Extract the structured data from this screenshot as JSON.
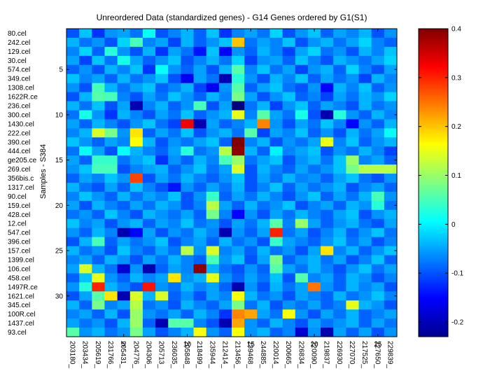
{
  "chart_data": {
    "type": "heatmap",
    "title": "Unreordered Data (standardized genes) - G14 Genes ordered by G1(S1)",
    "ylabel": "Samples - S384",
    "xlabel": "",
    "row_labels": [
      "80.cel",
      "242.cel",
      "129.cel",
      "30.cel",
      "574.cel",
      "349.cel",
      "1308.cel",
      "1622R.ce",
      "236.cel",
      "300.cel",
      "1430.cel",
      "222.cel",
      "390.cel",
      "444.cel",
      "ge205.ce",
      "269.cel",
      "356bis.c",
      "1317.cel",
      "90.cel",
      "159.cel",
      "428.cel",
      "12.cel",
      "547.cel",
      "396.cel",
      "157.cel",
      "1399.cel",
      "106.cel",
      "458.cel",
      "1497R.ce",
      "1621.cel",
      "345.cel",
      "100R.cel",
      "1437.cel",
      "93.cel"
    ],
    "row_numbers": [
      5,
      10,
      15,
      20,
      25,
      30
    ],
    "col_labels": [
      "203180_",
      "203434_",
      "205619_",
      "231766_",
      "205431_",
      "204776_",
      "204306_",
      "205713_",
      "236035_",
      "205848_",
      "218499_",
      "235944_",
      "212414_",
      "213456_",
      "239468_",
      "244885_",
      "220014_",
      "200665_",
      "226834_",
      "220090_",
      "219837_",
      "226930_",
      "227070_",
      "217525_",
      "227650_",
      "229839_"
    ],
    "col_numbers": [
      5,
      10,
      15,
      20,
      25
    ],
    "colorbar": {
      "min": -0.23,
      "max": 0.4,
      "ticks": [
        -0.2,
        -0.1,
        0,
        0.1,
        0.2,
        0.3,
        0.4
      ],
      "tick_labels": [
        "-0.2",
        "-0.1",
        "0",
        "0.1",
        "0.2",
        "0.3",
        "0.4"
      ],
      "colormap": "jet"
    },
    "values": [
      [
        -0.1,
        -0.03,
        -0.12,
        -0.06,
        -0.05,
        -0.08,
        0.01,
        -0.1,
        -0.07,
        -0.04,
        -0.09,
        -0.03,
        -0.12,
        -0.07,
        -0.05,
        -0.08,
        -0.02,
        -0.1,
        -0.06,
        -0.03,
        -0.09,
        -0.05,
        -0.07,
        -0.04,
        -0.1,
        -0.06
      ],
      [
        -0.04,
        -0.08,
        -0.06,
        -0.1,
        -0.02,
        0.05,
        -0.07,
        -0.05,
        -0.11,
        -0.04,
        -0.09,
        -0.06,
        -0.03,
        0.2,
        -0.08,
        -0.05,
        -0.07,
        -0.03,
        -0.1,
        -0.06,
        -0.04,
        -0.08,
        -0.05,
        -0.02,
        -0.07,
        -0.09
      ],
      [
        -0.07,
        -0.02,
        -0.09,
        0.03,
        -0.06,
        -0.1,
        -0.04,
        -0.12,
        -0.05,
        -0.08,
        -0.14,
        -0.03,
        -0.15,
        -0.06,
        -0.09,
        -0.04,
        -0.07,
        -0.11,
        -0.05,
        -0.02,
        -0.08,
        -0.06,
        -0.1,
        -0.04,
        -0.07,
        -0.03
      ],
      [
        -0.05,
        -0.11,
        -0.03,
        -0.08,
        0.02,
        -0.05,
        -0.09,
        -0.06,
        -0.03,
        -0.1,
        -0.07,
        -0.04,
        -0.08,
        -0.02,
        -0.11,
        -0.06,
        -0.05,
        -0.09,
        -0.03,
        -0.07,
        -0.1,
        -0.04,
        -0.06,
        -0.08,
        -0.05,
        -0.02
      ],
      [
        -0.09,
        -0.06,
        -0.1,
        -0.04,
        -0.07,
        -0.03,
        -0.12,
        0.01,
        -0.06,
        -0.09,
        -0.05,
        -0.1,
        -0.04,
        0.06,
        -0.07,
        -0.03,
        -0.08,
        -0.05,
        -0.11,
        -0.06,
        -0.04,
        -0.09,
        -0.02,
        -0.07,
        -0.1,
        -0.05
      ],
      [
        -0.03,
        -0.07,
        -0.05,
        -0.09,
        -0.04,
        -0.08,
        -0.06,
        -0.03,
        -0.1,
        -0.16,
        -0.05,
        -0.08,
        -0.2,
        0.03,
        -0.06,
        -0.1,
        -0.04,
        -0.07,
        -0.03,
        -0.09,
        -0.05,
        -0.08,
        -0.06,
        -0.11,
        -0.04,
        -0.07
      ],
      [
        -0.06,
        -0.1,
        0.05,
        -0.04,
        -0.08,
        -0.05,
        -0.03,
        -0.09,
        -0.07,
        -0.04,
        -0.11,
        -0.16,
        -0.06,
        0.06,
        -0.09,
        -0.05,
        -0.03,
        -0.08,
        -0.1,
        -0.06,
        -0.15,
        -0.04,
        -0.07,
        -0.03,
        -0.09,
        -0.06
      ],
      [
        -0.1,
        -0.04,
        0.06,
        0.05,
        -0.07,
        -0.1,
        -0.05,
        -0.08,
        -0.03,
        -0.06,
        -0.09,
        -0.04,
        -0.07,
        0.08,
        -0.05,
        -0.1,
        -0.06,
        -0.03,
        -0.09,
        -0.07,
        -0.11,
        -0.05,
        -0.08,
        -0.04,
        -0.06,
        -0.02
      ],
      [
        -0.04,
        -0.08,
        -0.03,
        -0.1,
        -0.05,
        -0.2,
        -0.07,
        -0.04,
        -0.09,
        -0.06,
        0.05,
        -0.1,
        -0.05,
        -0.25,
        -0.08,
        -0.04,
        -0.11,
        -0.06,
        -0.03,
        -0.09,
        -0.05,
        -0.07,
        -0.1,
        -0.04,
        -0.08,
        -0.06
      ],
      [
        -0.08,
        0.02,
        -0.06,
        -0.12,
        -0.04,
        -0.07,
        -0.1,
        -0.05,
        -0.08,
        -0.03,
        -0.09,
        -0.06,
        -0.04,
        0.15,
        -0.07,
        0.06,
        -0.05,
        -0.08,
        0.02,
        -0.1,
        -0.2,
        0.03,
        -0.06,
        -0.09,
        -0.04,
        -0.07
      ],
      [
        -0.05,
        -0.09,
        -0.04,
        -0.07,
        -0.1,
        -0.06,
        -0.03,
        -0.08,
        -0.11,
        0.33,
        -0.2,
        -0.05,
        -0.09,
        -0.07,
        -0.04,
        0.24,
        -0.06,
        -0.1,
        -0.05,
        -0.08,
        -0.03,
        -0.07,
        -0.15,
        -0.06,
        -0.09,
        -0.04
      ],
      [
        -0.07,
        -0.04,
        0.14,
        0.08,
        -0.06,
        0.18,
        -0.09,
        -0.05,
        -0.08,
        -0.03,
        -0.1,
        -0.06,
        -0.04,
        -0.08,
        0.06,
        -0.11,
        -0.05,
        -0.07,
        -0.03,
        -0.09,
        -0.06,
        -0.1,
        -0.04,
        -0.08,
        -0.05,
        0.01
      ],
      [
        -0.03,
        -0.06,
        -0.09,
        -0.05,
        -0.07,
        0.16,
        -0.04,
        -0.1,
        -0.06,
        -0.08,
        -0.05,
        -0.03,
        -0.09,
        0.4,
        -0.07,
        -0.04,
        -0.1,
        -0.06,
        -0.08,
        -0.05,
        0.15,
        -0.07,
        -0.03,
        -0.09,
        -0.06,
        -0.04
      ],
      [
        -0.08,
        0.01,
        -0.05,
        -0.1,
        0.01,
        -0.04,
        -0.07,
        -0.09,
        -0.05,
        0.03,
        -0.08,
        -0.06,
        0.12,
        0.39,
        -0.04,
        -0.09,
        0.0,
        -0.07,
        -0.05,
        -0.03,
        -0.1,
        -0.06,
        -0.08,
        -0.04,
        -0.07,
        -0.11
      ],
      [
        -0.05,
        -0.09,
        0.04,
        0.04,
        -0.08,
        -0.05,
        -0.03,
        -0.12,
        -0.06,
        -0.09,
        -0.04,
        -0.07,
        0.05,
        0.1,
        -0.08,
        -0.05,
        -0.03,
        -0.1,
        -0.06,
        -0.04,
        -0.08,
        -0.03,
        0.1,
        -0.07,
        -0.05,
        -0.09
      ],
      [
        -0.06,
        -0.03,
        0.05,
        0.05,
        -0.1,
        -0.07,
        -0.05,
        -0.04,
        -0.09,
        -0.06,
        -0.03,
        -0.08,
        -0.05,
        0.14,
        -0.1,
        -0.04,
        -0.07,
        -0.09,
        -0.05,
        -0.08,
        -0.06,
        -0.03,
        0.08,
        0.12,
        0.12,
        0.12
      ],
      [
        -0.09,
        -0.05,
        -0.07,
        -0.03,
        -0.06,
        0.28,
        -0.1,
        -0.05,
        -0.08,
        -0.04,
        -0.07,
        -0.09,
        -0.06,
        -0.03,
        -0.1,
        -0.05,
        -0.08,
        -0.04,
        -0.07,
        -0.06,
        -0.09,
        -0.05,
        -0.03,
        -0.08,
        -0.1,
        -0.06
      ],
      [
        -0.04,
        -0.08,
        -0.1,
        -0.05,
        -0.09,
        -0.03,
        -0.07,
        -0.1,
        -0.14,
        -0.06,
        -0.09,
        -0.05,
        -0.08,
        -0.04,
        -0.1,
        -0.07,
        -0.03,
        -0.09,
        -0.05,
        -0.08,
        -0.06,
        -0.04,
        -0.1,
        -0.07,
        -0.05,
        -0.09
      ],
      [
        -0.07,
        -0.03,
        -0.06,
        -0.09,
        -0.04,
        -0.08,
        -0.05,
        -0.07,
        -0.03,
        -0.1,
        -0.06,
        0.04,
        -0.09,
        -0.05,
        -0.08,
        -0.04,
        -0.07,
        -0.1,
        -0.06,
        -0.03,
        -0.09,
        -0.05,
        -0.08,
        -0.04,
        0.05,
        -0.06
      ],
      [
        -0.05,
        -0.1,
        -0.04,
        -0.07,
        -0.09,
        -0.05,
        -0.08,
        -0.04,
        -0.06,
        -0.1,
        -0.07,
        0.12,
        -0.05,
        -0.09,
        -0.04,
        -0.08,
        -0.06,
        -0.03,
        -0.1,
        -0.07,
        -0.05,
        -0.09,
        -0.04,
        -0.06,
        0.03,
        -0.08
      ],
      [
        -0.08,
        -0.06,
        -0.09,
        -0.03,
        -0.07,
        -0.1,
        -0.04,
        -0.06,
        -0.08,
        -0.05,
        -0.09,
        0.08,
        -0.07,
        -0.15,
        -0.06,
        -0.1,
        -0.05,
        -0.08,
        -0.04,
        -0.07,
        -0.09,
        -0.05,
        -0.03,
        -0.1,
        -0.06,
        -0.04
      ],
      [
        -0.03,
        -0.07,
        -0.05,
        -0.1,
        -0.06,
        -0.04,
        -0.09,
        -0.05,
        -0.07,
        -0.03,
        -0.08,
        -0.06,
        -0.1,
        -0.05,
        -0.08,
        -0.04,
        0.06,
        -0.07,
        0.1,
        -0.05,
        -0.09,
        -0.06,
        -0.04,
        -0.08,
        -0.1,
        -0.05
      ],
      [
        -0.06,
        -0.09,
        -0.04,
        -0.07,
        -0.2,
        -0.15,
        -0.05,
        -0.1,
        -0.06,
        -0.08,
        -0.04,
        -0.07,
        -0.2,
        -0.06,
        -0.09,
        -0.05,
        0.3,
        -0.08,
        -0.05,
        -0.1,
        -0.07,
        -0.04,
        -0.09,
        -0.06,
        -0.03,
        -0.08
      ],
      [
        -0.1,
        -0.04,
        0.05,
        -0.09,
        -0.05,
        -0.08,
        -0.06,
        -0.03,
        -0.1,
        -0.07,
        -0.05,
        -0.09,
        -0.04,
        -0.08,
        -0.06,
        -0.1,
        0.04,
        -0.05,
        -0.07,
        -0.09,
        -0.06,
        -0.03,
        -0.08,
        -0.05,
        -0.1,
        -0.07
      ],
      [
        -0.04,
        -0.08,
        -0.06,
        -0.1,
        -0.03,
        -0.07,
        -0.09,
        -0.05,
        -0.08,
        0.12,
        -0.06,
        0.14,
        -0.07,
        -0.05,
        -0.09,
        -0.04,
        -0.08,
        -0.06,
        -0.1,
        -0.05,
        0.18,
        -0.07,
        -0.04,
        -0.09,
        -0.06,
        -0.03
      ],
      [
        -0.07,
        -0.05,
        -0.09,
        -0.04,
        -0.06,
        -0.1,
        -0.05,
        -0.08,
        -0.04,
        -0.07,
        -0.09,
        0.05,
        -0.06,
        -0.03,
        -0.1,
        -0.05,
        0.08,
        -0.09,
        -0.06,
        -0.04,
        -0.08,
        -0.05,
        -0.1,
        -0.07,
        -0.03,
        -0.09
      ],
      [
        -0.05,
        0.14,
        -0.04,
        -0.08,
        -0.18,
        -0.06,
        -0.2,
        -0.09,
        -0.05,
        -0.07,
        0.39,
        -0.04,
        -0.08,
        -0.1,
        -0.06,
        -0.09,
        0.06,
        -0.05,
        -0.08,
        -0.04,
        -0.07,
        -0.1,
        -0.06,
        -0.03,
        -0.08,
        -0.05
      ],
      [
        -0.09,
        -0.03,
        0.15,
        -0.06,
        -0.09,
        -0.04,
        -0.07,
        -0.05,
        0.18,
        -0.06,
        -0.04,
        0.15,
        -0.06,
        -0.09,
        -0.05,
        -0.08,
        -0.03,
        -0.1,
        0.06,
        -0.07,
        -0.05,
        -0.09,
        -0.04,
        -0.06,
        -0.1,
        -0.07
      ],
      [
        -0.06,
        0.03,
        0.3,
        -0.04,
        -0.07,
        -0.1,
        0.31,
        -0.06,
        -0.08,
        -0.04,
        -0.07,
        -0.05,
        -0.09,
        -0.2,
        -0.06,
        -0.1,
        -0.04,
        -0.08,
        -0.05,
        0.25,
        -0.06,
        -0.09,
        -0.04,
        -0.07,
        -0.05,
        -0.1
      ],
      [
        -0.1,
        -0.05,
        0.06,
        0.18,
        -0.2,
        0.14,
        -0.04,
        0.14,
        -0.09,
        -0.06,
        -0.1,
        -0.05,
        -0.07,
        0.16,
        -0.04,
        -0.08,
        -0.06,
        -0.1,
        -0.05,
        -0.07,
        -0.09,
        -0.04,
        -0.08,
        -0.06,
        -0.03,
        -0.07
      ],
      [
        -0.04,
        -0.09,
        0.08,
        -0.07,
        -0.05,
        0.12,
        -0.08,
        -0.06,
        -0.1,
        -0.04,
        -0.07,
        -0.09,
        -0.05,
        0.08,
        -0.08,
        -0.04,
        -0.1,
        -0.06,
        -0.08,
        -0.05,
        -0.09,
        -0.07,
        0.15,
        -0.04,
        -0.06,
        -0.1
      ],
      [
        -0.07,
        -0.05,
        -0.09,
        -0.04,
        -0.1,
        0.1,
        -0.06,
        -0.08,
        -0.05,
        -0.09,
        -0.04,
        -0.07,
        -0.12,
        0.24,
        0.22,
        -0.05,
        -0.08,
        0.16,
        -0.06,
        -0.1,
        -0.05,
        -0.08,
        -0.04,
        -0.09,
        -0.07,
        -0.05
      ],
      [
        -0.05,
        -0.08,
        -0.06,
        -0.1,
        -0.04,
        0.1,
        -0.09,
        -0.2,
        0.06,
        0.06,
        -0.07,
        -0.1,
        -0.2,
        0.22,
        -0.06,
        -0.09,
        -0.04,
        -0.07,
        -0.1,
        -0.05,
        -0.08,
        -0.06,
        -0.04,
        -0.09,
        -0.05,
        -0.08
      ],
      [
        0.06,
        -0.06,
        -0.04,
        -0.08,
        -0.06,
        0.08,
        -0.05,
        -0.1,
        -0.07,
        -0.04,
        0.16,
        -0.06,
        -0.09,
        0.16,
        -0.06,
        -0.04,
        -0.09,
        -0.07,
        -0.18,
        -0.06,
        -0.2,
        -0.05,
        -0.09,
        -0.05,
        -0.1,
        -0.06
      ]
    ]
  }
}
